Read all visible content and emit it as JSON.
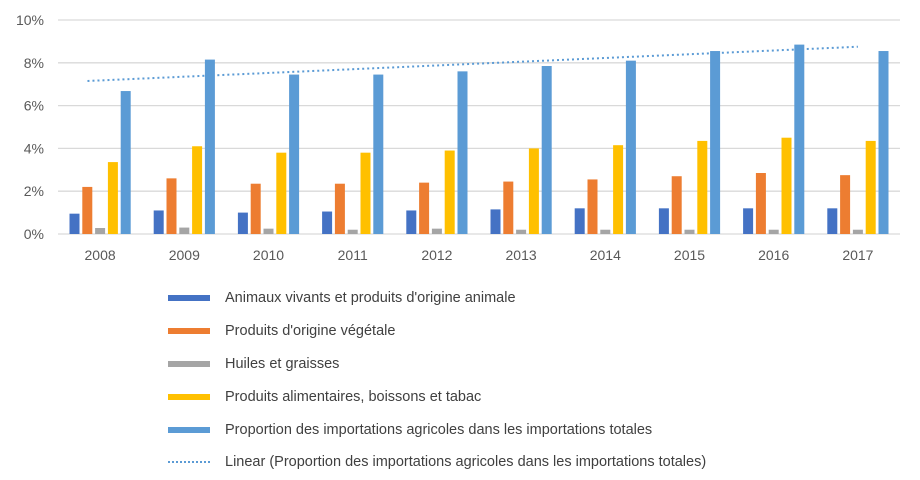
{
  "chart_data": {
    "type": "bar",
    "categories": [
      "2008",
      "2009",
      "2010",
      "2011",
      "2012",
      "2013",
      "2014",
      "2015",
      "2016",
      "2017"
    ],
    "ylim": [
      0,
      10
    ],
    "yticks": [
      "0%",
      "2%",
      "4%",
      "6%",
      "8%",
      "10%"
    ],
    "grid": true,
    "legend_placement": "bottom",
    "series": [
      {
        "name": "Animaux vivants et produits d'origine animale",
        "color": "#4472c4",
        "values": [
          0.95,
          1.1,
          1.0,
          1.05,
          1.1,
          1.15,
          1.2,
          1.2,
          1.2,
          1.2
        ]
      },
      {
        "name": "Produits d'origine végétale",
        "color": "#ed7d31",
        "values": [
          2.2,
          2.6,
          2.35,
          2.35,
          2.4,
          2.45,
          2.55,
          2.7,
          2.85,
          2.75
        ]
      },
      {
        "name": "Huiles et graisses",
        "color": "#a5a5a5",
        "values": [
          0.28,
          0.3,
          0.25,
          0.2,
          0.25,
          0.2,
          0.2,
          0.2,
          0.2,
          0.2
        ]
      },
      {
        "name": "Produits alimentaires, boissons et tabac",
        "color": "#ffc000",
        "values": [
          3.36,
          4.1,
          3.8,
          3.8,
          3.9,
          4.0,
          4.15,
          4.35,
          4.5,
          4.35
        ]
      },
      {
        "name": "Proportion des importations agricoles dans les importations totales",
        "color": "#5b9bd5",
        "values": [
          6.68,
          8.15,
          7.45,
          7.45,
          7.6,
          7.85,
          8.1,
          8.55,
          8.85,
          8.55
        ]
      }
    ],
    "trendline": {
      "name": "Linear (Proportion des importations agricoles dans les importations totales)",
      "type": "linear",
      "style": "dotted",
      "color": "#5b9bd5",
      "start": 7.15,
      "end": 8.75
    }
  }
}
